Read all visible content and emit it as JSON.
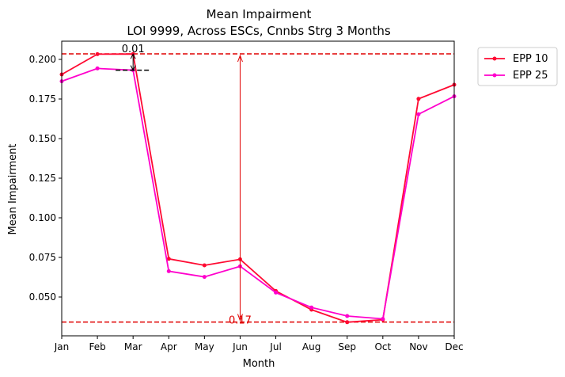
{
  "chart_data": {
    "type": "line",
    "title": "Mean Impairment",
    "subtitle": "LOI 9999, Across ESCs, Cnnbs Strg 3 Months",
    "xlabel": "Month",
    "ylabel": "Mean Impairment",
    "categories": [
      "Jan",
      "Feb",
      "Mar",
      "Apr",
      "May",
      "Jun",
      "Jul",
      "Aug",
      "Sep",
      "Oct",
      "Nov",
      "Dec"
    ],
    "ylim": [
      0.0255,
      0.2115
    ],
    "yticks": [
      "0.050",
      "0.075",
      "0.100",
      "0.125",
      "0.150",
      "0.175",
      "0.200"
    ],
    "ytick_values": [
      0.05,
      0.075,
      0.1,
      0.125,
      0.15,
      0.175,
      0.2
    ],
    "grid": false,
    "legend_position": "outside-top-right",
    "series": [
      {
        "name": "EPP 10",
        "color": "#ff0a32",
        "values": [
          0.1905,
          0.2033,
          0.2034,
          0.0741,
          0.07,
          0.0738,
          0.0538,
          0.042,
          0.0341,
          0.0357,
          0.1751,
          0.184
        ]
      },
      {
        "name": "EPP 25",
        "color": "#ff00cc",
        "values": [
          0.1862,
          0.1943,
          0.1932,
          0.0663,
          0.0627,
          0.0694,
          0.0528,
          0.0434,
          0.038,
          0.0362,
          0.1654,
          0.1767
        ]
      }
    ],
    "reference_lines": [
      {
        "y": 0.2035,
        "color": "#e00000",
        "style": "dashed"
      },
      {
        "y": 0.0342,
        "color": "#e00000",
        "style": "dashed"
      }
    ],
    "annotations": [
      {
        "text": "0.01",
        "x": "Mar",
        "color": "#000000",
        "from": 0.2034,
        "to": 0.1932
      },
      {
        "text": "0.17",
        "x": "Jun",
        "color": "#e00000",
        "from": 0.2035,
        "to": 0.0342
      }
    ]
  }
}
